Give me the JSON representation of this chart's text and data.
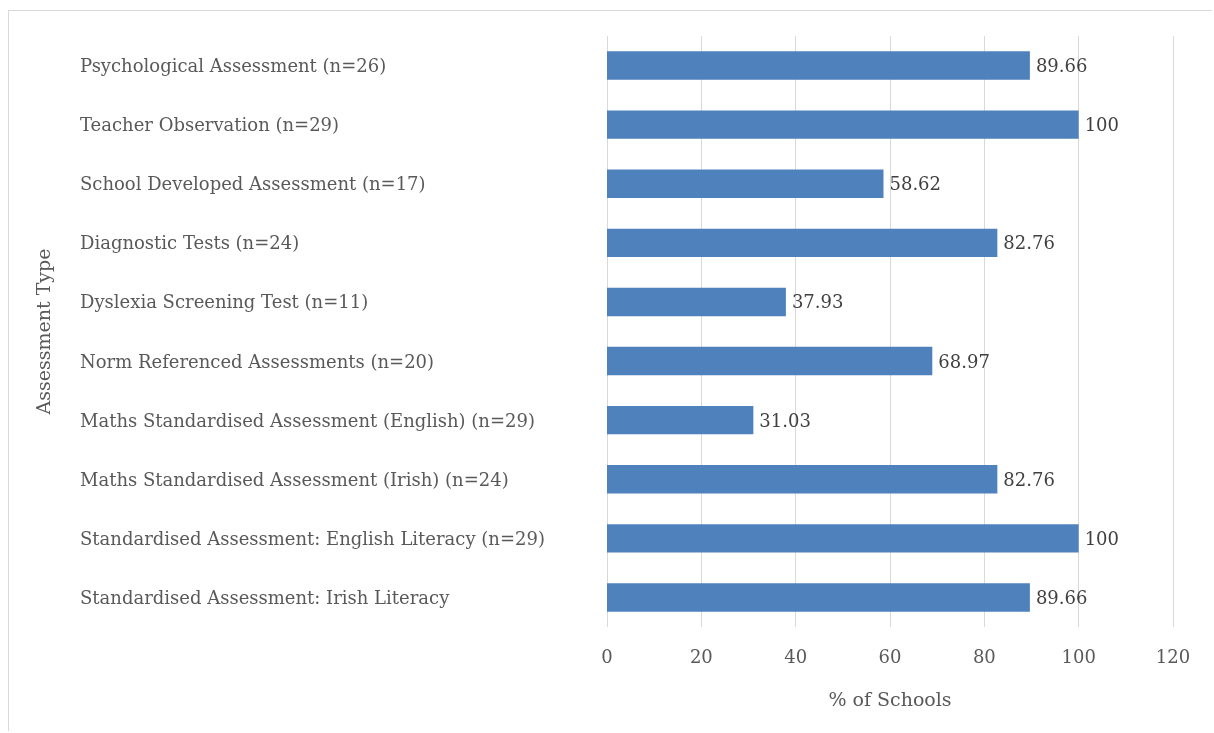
{
  "chart_data": {
    "type": "bar",
    "orientation": "horizontal",
    "xlabel": "% of Schools",
    "ylabel": "Assessment Type",
    "categories": [
      "Psychological Assessment (n=26)",
      "Teacher Observation (n=29)",
      "School Developed Assessment (n=17)",
      "Diagnostic Tests (n=24)",
      "Dyslexia Screening Test (n=11)",
      "Norm Referenced Assessments (n=20)",
      "Maths Standardised Assessment (English) (n=29)",
      "Maths Standardised Assessment (Irish) (n=24)",
      "Standardised Assessment: English Literacy (n=29)",
      "Standardised Assessment: Irish Literacy"
    ],
    "values": [
      89.66,
      100,
      58.62,
      82.76,
      37.93,
      68.97,
      31.03,
      82.76,
      100,
      89.66
    ],
    "color": "#4f81bd",
    "data_labels": true,
    "xlim": [
      0,
      120
    ],
    "xticks": [
      0,
      20,
      40,
      60,
      80,
      100,
      120
    ],
    "grid": "x"
  }
}
